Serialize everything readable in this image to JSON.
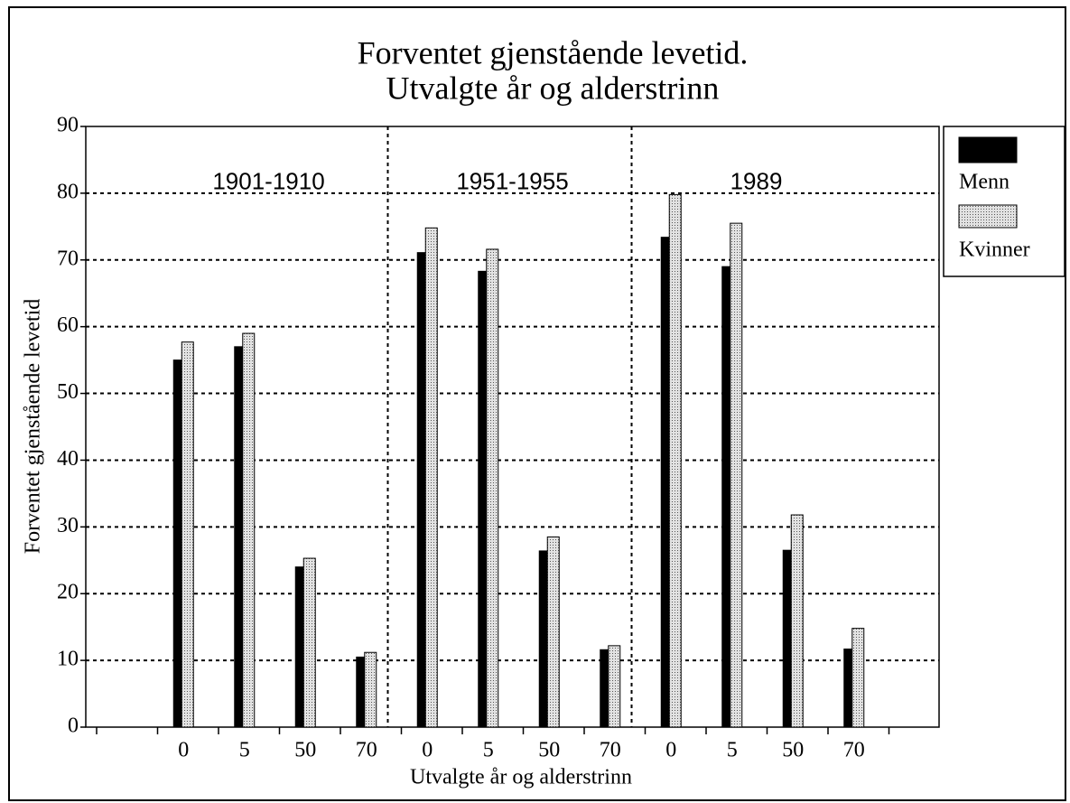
{
  "chart_data": {
    "type": "bar",
    "title": "Forventet gjenstående levetid.",
    "subtitle": "Utvalgte år og alderstrinn",
    "x_label": "Utvalgte år og alderstrinn",
    "y_label": "Forventet gjenstående levetid",
    "groups": [
      "1901-1910",
      "1951-1955",
      "1989"
    ],
    "categories": [
      null,
      "0",
      "5",
      "50",
      "70",
      "0",
      "5",
      "50",
      "70",
      "0",
      "5",
      "50",
      "70",
      null
    ],
    "series": [
      {
        "name": "Menn",
        "color": "#000000",
        "values": [
          null,
          55,
          57,
          24,
          10.5,
          71.1,
          68.3,
          26.4,
          11.6,
          73.4,
          69,
          26.5,
          11.7,
          null
        ]
      },
      {
        "name": "Kvinner",
        "color": "#cccccc",
        "values": [
          null,
          57.7,
          59,
          25.3,
          11.2,
          74.8,
          71.6,
          28.5,
          12.2,
          79.8,
          75.5,
          31.8,
          14.8,
          null
        ]
      }
    ],
    "ylim": [
      0,
      90
    ],
    "yticks": [
      0,
      10,
      20,
      30,
      40,
      50,
      60,
      70,
      80,
      90
    ],
    "grid": true,
    "legend": "right"
  }
}
